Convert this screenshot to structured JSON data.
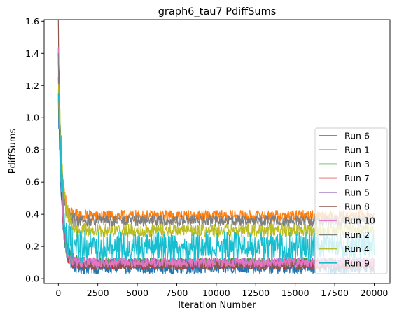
{
  "chart_data": {
    "type": "line",
    "title": "graph6_tau7 PdiffSums",
    "xlabel": "Iteration Number",
    "ylabel": "PdiffSums",
    "xlim": [
      -900,
      21000
    ],
    "ylim": [
      -0.03,
      1.61
    ],
    "xticks": [
      0,
      2500,
      5000,
      7500,
      10000,
      12500,
      15000,
      17500,
      20000
    ],
    "yticks": [
      0.0,
      0.2,
      0.4,
      0.6,
      0.8,
      1.0,
      1.2,
      1.4,
      1.6
    ],
    "grid": false,
    "legend_position": "lower-right",
    "series": [
      {
        "name": "Run 6",
        "color": "#1f77b4",
        "x_end": 20000,
        "start": 1.1,
        "floor": 0.07,
        "noise": 0.04,
        "decay": 250
      },
      {
        "name": "Run 1",
        "color": "#ff7f0e",
        "x_end": 20000,
        "start": 1.3,
        "floor": 0.39,
        "noise": 0.035,
        "decay": 180
      },
      {
        "name": "Run 3",
        "color": "#2ca02c",
        "x_end": 20000,
        "start": 1.2,
        "floor": 0.1,
        "noise": 0.03,
        "decay": 220
      },
      {
        "name": "Run 7",
        "color": "#d62728",
        "x_end": 20000,
        "start": 1.35,
        "floor": 0.09,
        "noise": 0.03,
        "decay": 200
      },
      {
        "name": "Run 5",
        "color": "#9467bd",
        "x_end": 20000,
        "start": 1.37,
        "floor": 0.1,
        "noise": 0.03,
        "decay": 200
      },
      {
        "name": "Run 8",
        "color": "#8c564b",
        "x_end": 20000,
        "start": 1.56,
        "floor": 0.08,
        "noise": 0.025,
        "decay": 200
      },
      {
        "name": "Run 10",
        "color": "#e377c2",
        "x_end": 20000,
        "start": 1.36,
        "floor": 0.1,
        "noise": 0.03,
        "decay": 200
      },
      {
        "name": "Run 2",
        "color": "#7f7f7f",
        "x_end": 20000,
        "start": 1.3,
        "floor": 0.36,
        "noise": 0.035,
        "decay": 200
      },
      {
        "name": "Run 4",
        "color": "#bcbd22",
        "x_end": 20000,
        "start": 1.28,
        "floor": 0.3,
        "noise": 0.04,
        "decay": 250
      },
      {
        "name": "Run 9",
        "color": "#17becf",
        "x_end": 20000,
        "start": 1.34,
        "floor": 0.2,
        "noise": 0.09,
        "decay": 200
      }
    ]
  }
}
